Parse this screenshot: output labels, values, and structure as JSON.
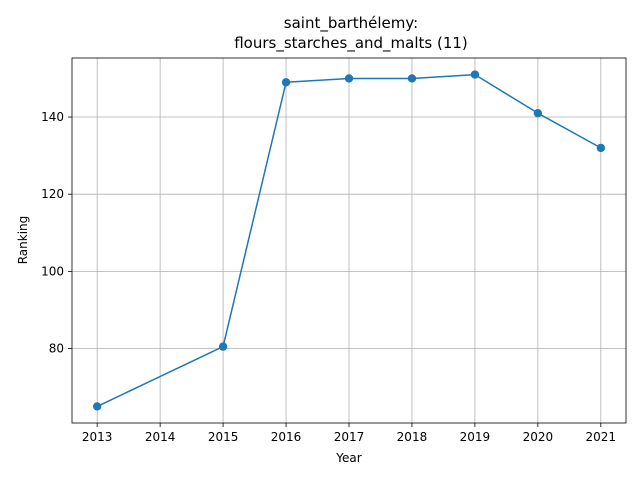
{
  "chart_data": {
    "type": "line",
    "title_line1": "saint_barthélemy:",
    "title_line2": "flours_starches_and_malts (11)",
    "xlabel": "Year",
    "ylabel": "Ranking",
    "x": [
      2013,
      2015,
      2016,
      2017,
      2018,
      2019,
      2020,
      2021
    ],
    "y": [
      65,
      80.5,
      149,
      150,
      150,
      151,
      141,
      132
    ],
    "xticks": [
      2013,
      2014,
      2015,
      2016,
      2017,
      2018,
      2019,
      2020,
      2021
    ],
    "yticks": [
      80,
      100,
      120,
      140
    ],
    "xlim": [
      2012.6,
      2021.4
    ],
    "ylim": [
      60.7,
      155.3
    ],
    "grid": true,
    "line_color": "#1f77b4",
    "marker": "circle"
  }
}
